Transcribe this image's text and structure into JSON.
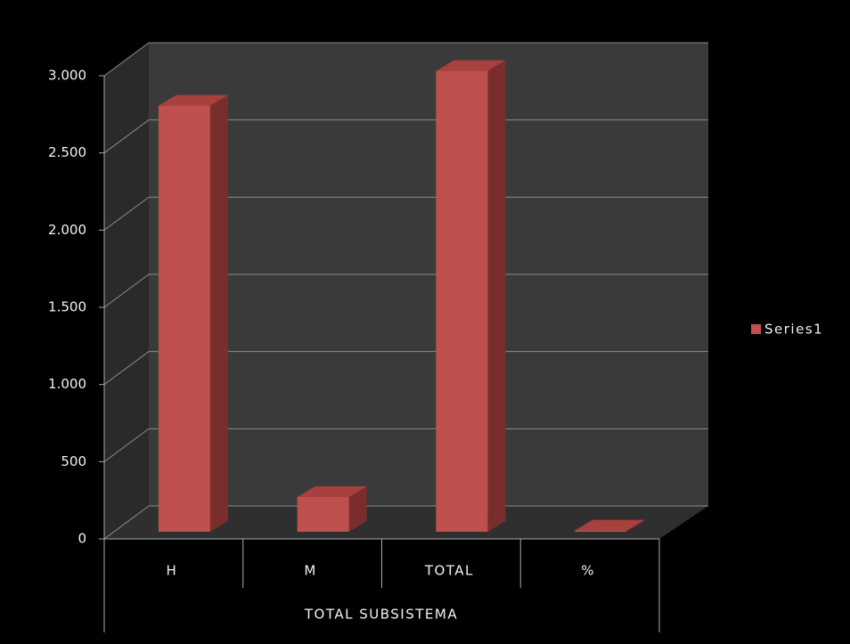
{
  "chart_data": {
    "type": "bar3d",
    "categories": [
      "H",
      "M",
      "TOTAL",
      "%"
    ],
    "group_label": "TOTAL SUBSISTEMA",
    "series": [
      {
        "name": "Series1",
        "color": "#c0504d",
        "values": [
          2760,
          225,
          2985,
          8
        ]
      }
    ],
    "ylim": [
      0,
      3000
    ],
    "yticks": [
      0,
      500,
      {
        "value": 1000,
        "label": "1.000"
      },
      {
        "value": 1500,
        "label": "1.500"
      },
      {
        "value": 2000,
        "label": "2.000"
      },
      {
        "value": 2500,
        "label": "2.500"
      },
      {
        "value": 3000,
        "label": "3.000"
      }
    ],
    "grid": true,
    "legend": "right"
  }
}
